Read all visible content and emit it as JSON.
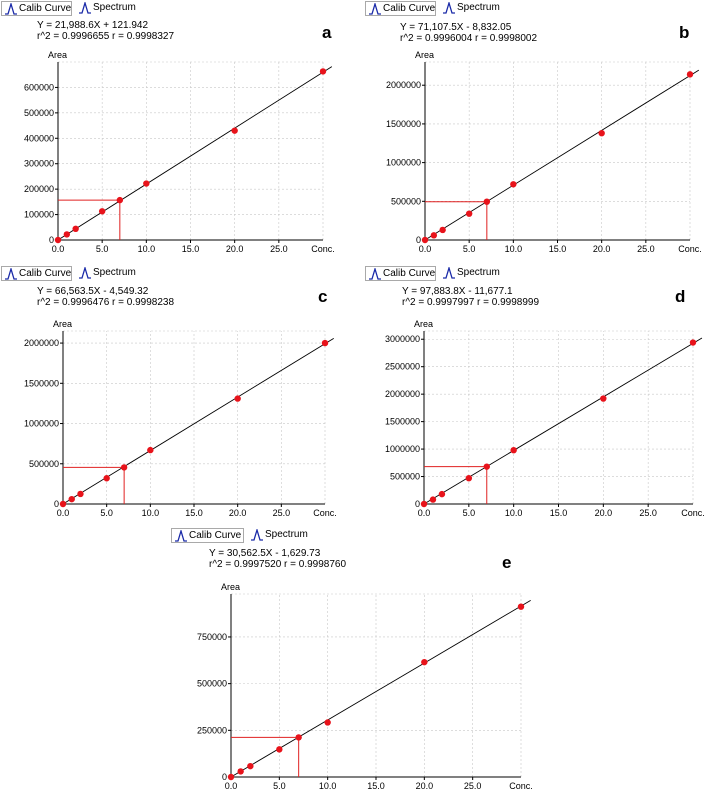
{
  "tabs": {
    "calib": "Calib Curve",
    "spectrum": "Spectrum"
  },
  "colors": {
    "points": "#e8131b",
    "marker": "#e02020",
    "line": "#000000",
    "grid": "#c8c8c8",
    "tab_icon": "#1a2aa8"
  },
  "chart_data": [
    {
      "id": "a",
      "type": "scatter",
      "letter": "a",
      "equation": "Y = 21,988.6X + 121.942",
      "stats": "r^2 = 0.9996655   r = 0.9998327",
      "ylabel": "Area",
      "xlabel": "Conc.",
      "xlim": [
        0,
        30
      ],
      "ylim": [
        0,
        700000
      ],
      "xticks": [
        "0.0",
        "5.0",
        "10.0",
        "15.0",
        "20.0",
        "25.0"
      ],
      "yticks": [
        "0",
        "100000",
        "200000",
        "300000",
        "400000",
        "500000",
        "600000"
      ],
      "fit": {
        "slope": 21988.6,
        "intercept": 121.942
      },
      "x": [
        0,
        1,
        2,
        5,
        10,
        20,
        30
      ],
      "y": [
        0,
        22000,
        44000,
        113000,
        222000,
        430000,
        663000
      ],
      "marker_point": {
        "x": 7,
        "y": 157000
      }
    },
    {
      "id": "b",
      "type": "scatter",
      "letter": "b",
      "equation": "Y = 71,107.5X - 8,832.05",
      "stats": "r^2 = 0.9996004   r = 0.9998002",
      "ylabel": "Area",
      "xlabel": "Conc.",
      "xlim": [
        0,
        30
      ],
      "ylim": [
        0,
        2300000
      ],
      "xticks": [
        "0.0",
        "5.0",
        "10.0",
        "15.0",
        "20.0",
        "25.0"
      ],
      "yticks": [
        "0",
        "500000",
        "1000000",
        "1500000",
        "2000000"
      ],
      "fit": {
        "slope": 71107.5,
        "intercept": -8832.05
      },
      "x": [
        0,
        1,
        2,
        5,
        10,
        20,
        30
      ],
      "y": [
        0,
        60000,
        130000,
        340000,
        720000,
        1380000,
        2140000
      ],
      "marker_point": {
        "x": 7,
        "y": 495000
      }
    },
    {
      "id": "c",
      "type": "scatter",
      "letter": "c",
      "equation": "Y = 66,563.5X - 4,549.32",
      "stats": "r^2 = 0.9996476   r = 0.9998238",
      "ylabel": "Area",
      "xlabel": "Conc.",
      "xlim": [
        0,
        30
      ],
      "ylim": [
        0,
        2150000
      ],
      "xticks": [
        "0.0",
        "5.0",
        "10.0",
        "15.0",
        "20.0",
        "25.0"
      ],
      "yticks": [
        "0",
        "500000",
        "1000000",
        "1500000",
        "2000000"
      ],
      "fit": {
        "slope": 66563.5,
        "intercept": -4549.32
      },
      "x": [
        0,
        1,
        2,
        5,
        10,
        20,
        30
      ],
      "y": [
        0,
        60000,
        125000,
        320000,
        670000,
        1310000,
        2000000
      ],
      "marker_point": {
        "x": 7,
        "y": 455000
      }
    },
    {
      "id": "d",
      "type": "scatter",
      "letter": "d",
      "equation": "Y = 97,883.8X - 11,677.1",
      "stats": "r^2 = 0.9997997   r = 0.9998999",
      "ylabel": "Area",
      "xlabel": "Conc.",
      "xlim": [
        0,
        30
      ],
      "ylim": [
        0,
        3150000
      ],
      "xticks": [
        "0.0",
        "5.0",
        "10.0",
        "15.0",
        "20.0",
        "25.0"
      ],
      "yticks": [
        "0",
        "500000",
        "1000000",
        "1500000",
        "2000000",
        "2500000",
        "3000000"
      ],
      "fit": {
        "slope": 97883.8,
        "intercept": -11677.1
      },
      "x": [
        0,
        1,
        2,
        5,
        10,
        20,
        30
      ],
      "y": [
        0,
        80000,
        180000,
        470000,
        980000,
        1920000,
        2940000
      ],
      "marker_point": {
        "x": 7,
        "y": 680000
      }
    },
    {
      "id": "e",
      "type": "scatter",
      "letter": "e",
      "equation": "Y = 30,562.5X - 1,629.73",
      "stats": "r^2 = 0.9997520   r = 0.9998760",
      "ylabel": "Area",
      "xlabel": "Conc.",
      "xlim": [
        0,
        30
      ],
      "ylim": [
        0,
        980000
      ],
      "xticks": [
        "0.0",
        "5.0",
        "10.0",
        "15.0",
        "20.0",
        "25.0"
      ],
      "yticks": [
        "0",
        "250000",
        "500000",
        "750000"
      ],
      "fit": {
        "slope": 30562.5,
        "intercept": -1629.73
      },
      "x": [
        0,
        1,
        2,
        5,
        10,
        20,
        30
      ],
      "y": [
        0,
        30000,
        58000,
        148000,
        292000,
        615000,
        912000
      ],
      "marker_point": {
        "x": 7,
        "y": 212000
      }
    }
  ]
}
